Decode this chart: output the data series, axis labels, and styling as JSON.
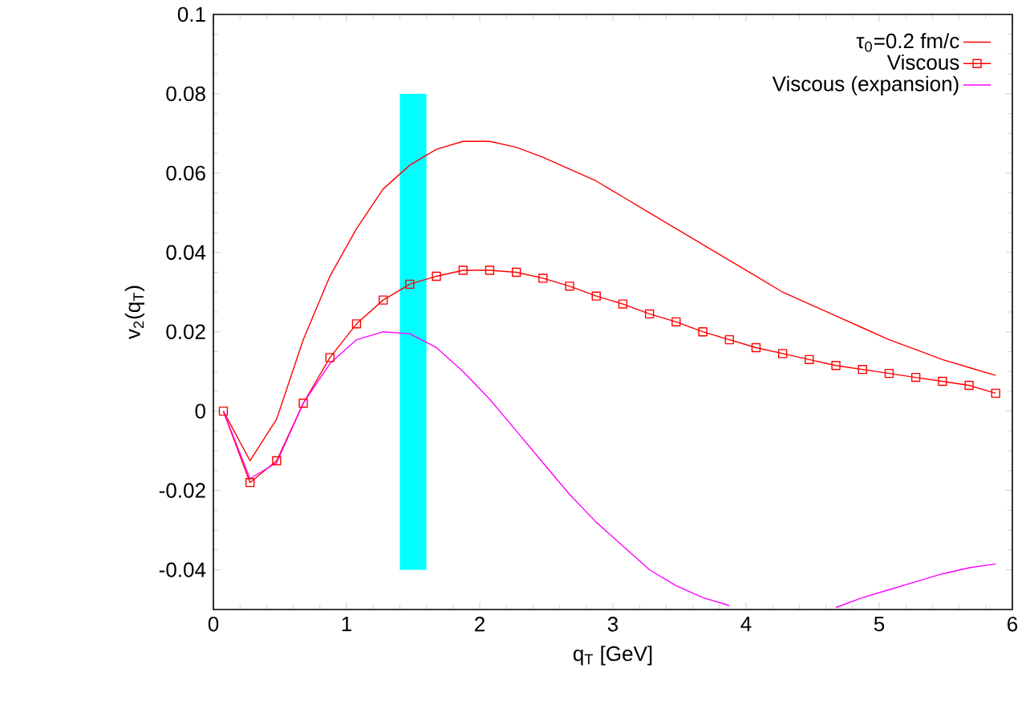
{
  "chart_data": {
    "type": "line",
    "xlabel": "q$_{T}$ [GeV]",
    "ylabel": "v$_{2}$(q$_{T}$)",
    "x": [
      0.075,
      0.275,
      0.475,
      0.675,
      0.875,
      1.075,
      1.275,
      1.475,
      1.675,
      1.875,
      2.075,
      2.275,
      2.475,
      2.675,
      2.875,
      3.075,
      3.275,
      3.475,
      3.675,
      3.875,
      4.075,
      4.275,
      4.475,
      4.675,
      4.875,
      5.075,
      5.275,
      5.475,
      5.675,
      5.875
    ],
    "series": [
      {
        "type": "bar",
        "x": [
          1.5
        ],
        "base": [
          -0.04
        ],
        "values": [
          0.12
        ],
        "color": "#00ffff"
      },
      {
        "name": "τ$_{0}$=0.2 fm/c",
        "color": "#ff0000",
        "marker": "none",
        "values": [
          0,
          -0.0125,
          -0.002,
          0.018,
          0.034,
          0.046,
          0.056,
          0.062,
          0.066,
          0.068,
          0.068,
          0.0665,
          0.064,
          0.061,
          0.058,
          0.054,
          0.05,
          0.046,
          0.042,
          0.038,
          0.034,
          0.03,
          0.027,
          0.024,
          0.021,
          0.018,
          0.0155,
          0.013,
          0.011,
          0.009
        ]
      },
      {
        "name": "Viscous",
        "color": "#ff0000",
        "marker": "square",
        "values": [
          0,
          -0.018,
          -0.0125,
          0.002,
          0.0135,
          0.022,
          0.028,
          0.032,
          0.034,
          0.0355,
          0.0355,
          0.035,
          0.0335,
          0.0315,
          0.029,
          0.027,
          0.0245,
          0.0225,
          0.02,
          0.018,
          0.016,
          0.0145,
          0.013,
          0.0115,
          0.0105,
          0.0095,
          0.0085,
          0.0075,
          0.0065,
          0.0045
        ]
      },
      {
        "name": "Viscous (expansion)",
        "color": "#ff00ff",
        "marker": "none",
        "values": [
          0,
          -0.017,
          -0.013,
          0.002,
          0.012,
          0.018,
          0.02,
          0.0195,
          0.016,
          0.01,
          0.003,
          -0.005,
          -0.013,
          -0.021,
          -0.028,
          -0.034,
          -0.04,
          -0.044,
          -0.047,
          -0.049,
          null,
          null,
          null,
          -0.0495,
          -0.047,
          -0.045,
          -0.043,
          -0.041,
          -0.0395,
          -0.0385
        ]
      }
    ],
    "xlim": [
      0,
      6
    ],
    "ylim": [
      -0.05,
      0.1
    ],
    "xticks": [
      0,
      1,
      2,
      3,
      4,
      5,
      6
    ],
    "yticks": [
      -0.04,
      -0.02,
      0,
      0.02,
      0.04,
      0.06,
      0.08,
      0.1
    ],
    "grid": false,
    "legend": "top right"
  }
}
